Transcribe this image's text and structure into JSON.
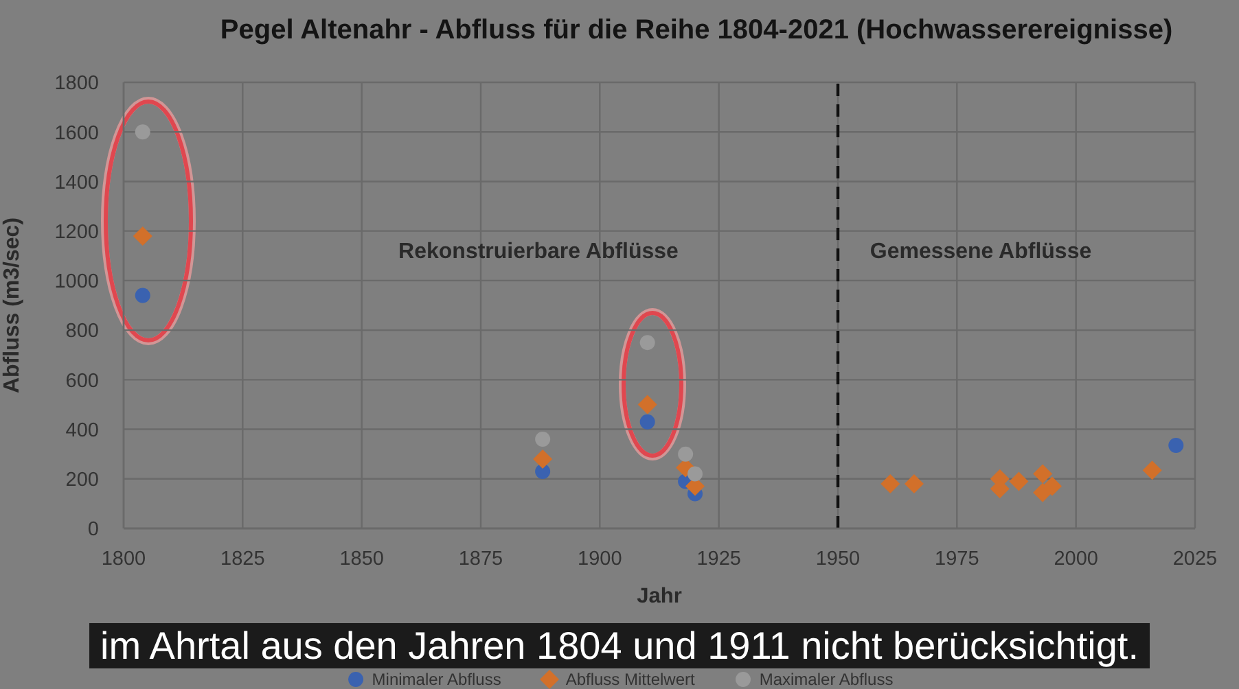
{
  "chart_data": {
    "type": "scatter",
    "title": "Pegel Altenahr - Abfluss für die Reihe 1804-2021 (Hochwasserereignisse)",
    "xlabel": "Jahr",
    "ylabel": "Abfluss (m3/sec)",
    "series": [
      {
        "name": "Minimaler Abfluss",
        "color": "#3a62b0",
        "marker": "circle",
        "x": [
          1804,
          1888,
          1910,
          1918,
          1920,
          2021
        ],
        "values": [
          940,
          230,
          430,
          190,
          140,
          335
        ]
      },
      {
        "name": "Abfluss Mittelwert",
        "color": "#d2702a",
        "marker": "diamond",
        "x": [
          1804,
          1888,
          1910,
          1918,
          1920,
          1961,
          1966,
          1984,
          1984,
          1988,
          1993,
          1993,
          1995,
          2016
        ],
        "values": [
          1180,
          280,
          500,
          245,
          170,
          180,
          180,
          200,
          160,
          190,
          220,
          145,
          170,
          235
        ]
      },
      {
        "name": "Maximaler Abfluss",
        "color": "#9a9a9a",
        "marker": "circle",
        "x": [
          1804,
          1888,
          1910,
          1918,
          1920
        ],
        "values": [
          1600,
          360,
          750,
          300,
          220
        ]
      }
    ],
    "xlim": [
      1800,
      2025
    ],
    "xticks": [
      1800,
      1825,
      1850,
      1875,
      1900,
      1925,
      1950,
      1975,
      2000,
      2025
    ],
    "ylim": [
      0,
      1800
    ],
    "yticks": [
      0,
      200,
      400,
      600,
      800,
      1000,
      1200,
      1400,
      1600,
      1800
    ],
    "grid": true,
    "legend": "bottom",
    "ref_lines": [
      {
        "axis": "x",
        "value": 1950,
        "color": "#111111",
        "line_style": "dashed"
      }
    ],
    "annotations": [
      "Rekonstruierbare Abflüsse",
      "Gemessene Abflüsse",
      "im Ahrtal aus den Jahren 1804 und 1911 nicht berücksichtigt."
    ]
  }
}
